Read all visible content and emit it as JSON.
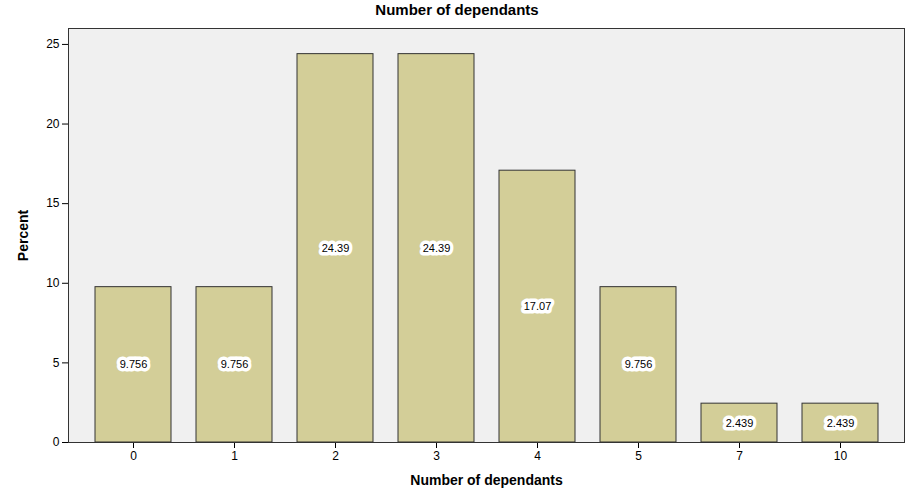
{
  "chart_data": {
    "type": "bar",
    "title": "Number of dependants",
    "x_label": "Number of dependants",
    "y_label": "Percent",
    "categories": [
      "0",
      "1",
      "2",
      "3",
      "4",
      "5",
      "7",
      "10"
    ],
    "values": [
      9.756,
      9.756,
      24.39,
      24.39,
      17.07,
      9.756,
      2.439,
      2.439
    ],
    "color": "#d3ce98",
    "ylim": [
      0,
      26
    ],
    "yticks": [
      0,
      5,
      10,
      15,
      20,
      25
    ],
    "grid": false,
    "data_labels": true
  }
}
